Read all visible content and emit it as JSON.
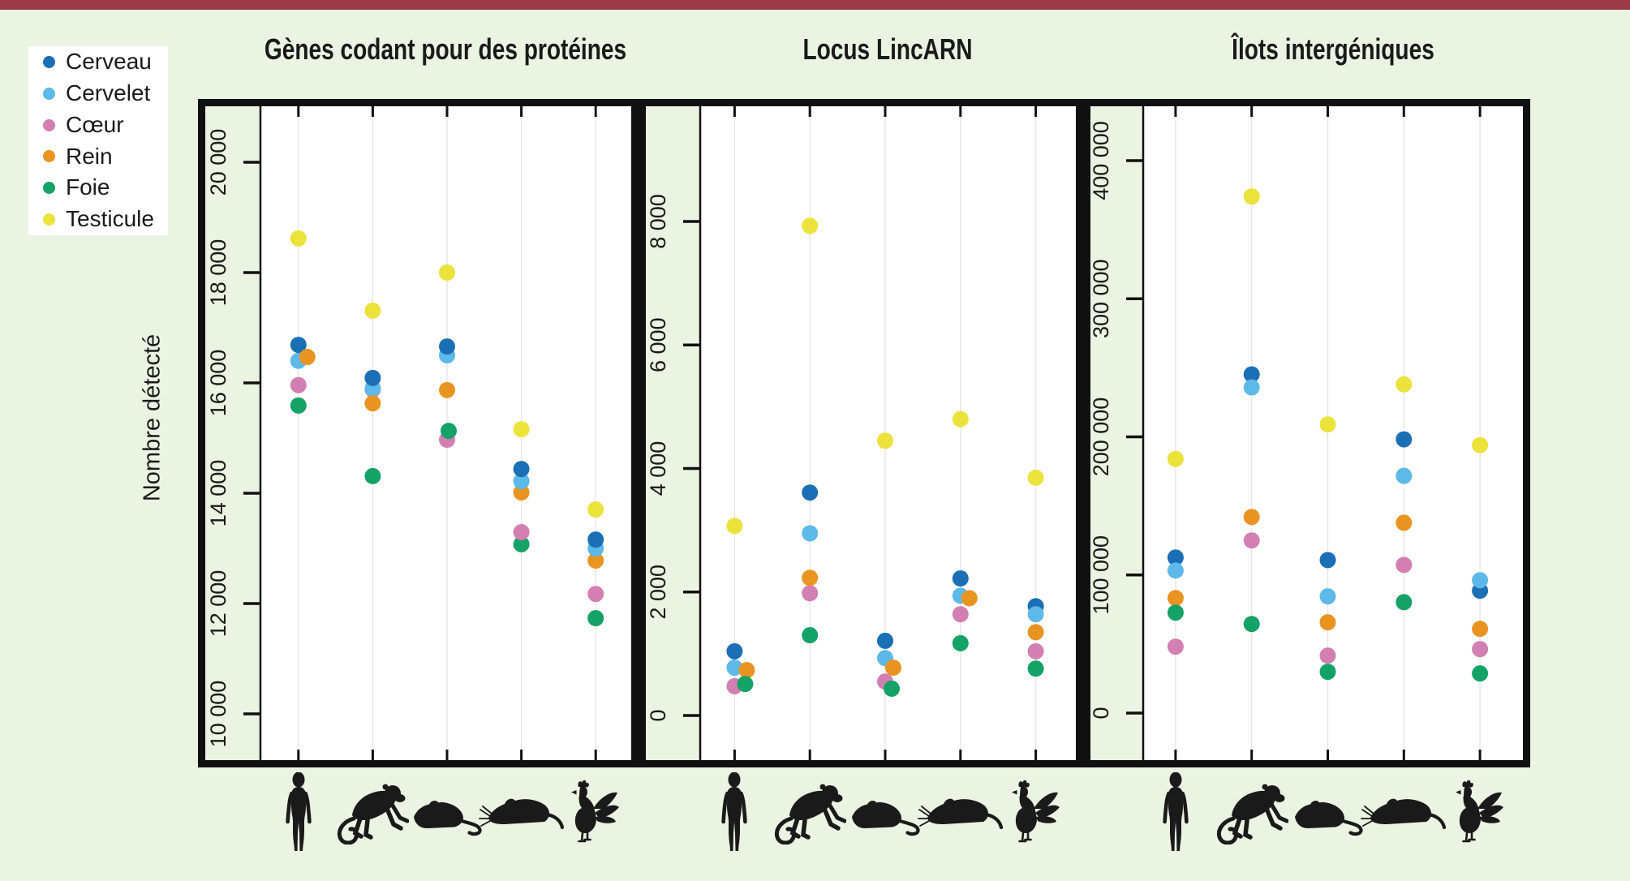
{
  "accent_bar_color": "#9b3a46",
  "background_color": "#ebf3e2",
  "y_axis_label": "Nombre détecté",
  "legend": {
    "items": [
      {
        "label": "Cerveau",
        "color": "#1b6fb5"
      },
      {
        "label": "Cervelet",
        "color": "#5cb9e8"
      },
      {
        "label": "Cœur",
        "color": "#d27fb2"
      },
      {
        "label": "Rein",
        "color": "#e99421"
      },
      {
        "label": "Foie",
        "color": "#14a266"
      },
      {
        "label": "Testicule",
        "color": "#ebe23c"
      }
    ]
  },
  "species_icons": [
    "human",
    "monkey",
    "mouse",
    "rat",
    "rooster"
  ],
  "chart_data": {
    "type": "scatter",
    "panels": [
      {
        "title": "Gènes codant pour des protéines",
        "ylim": [
          10000,
          20000
        ],
        "yticks": [
          {
            "v": 10000,
            "label": "10 000"
          },
          {
            "v": 12000,
            "label": "12 000"
          },
          {
            "v": 14000,
            "label": "14 000"
          },
          {
            "v": 16000,
            "label": "16 000"
          },
          {
            "v": 18000,
            "label": "18 000"
          },
          {
            "v": 20000,
            "label": "20 000"
          }
        ],
        "species_points": [
          {
            "species": "human",
            "points": [
              {
                "organ": "Cervelet",
                "value": 16400
              },
              {
                "organ": "Cœur",
                "value": 15960
              },
              {
                "organ": "Foie",
                "value": 15590
              },
              {
                "organ": "Cerveau",
                "value": 16690
              },
              {
                "organ": "Rein",
                "value": 16470,
                "dx": 11
              },
              {
                "organ": "Testicule",
                "value": 18620
              }
            ]
          },
          {
            "species": "monkey",
            "points": [
              {
                "organ": "Cœur",
                "value": 15880
              },
              {
                "organ": "Cervelet",
                "value": 15900
              },
              {
                "organ": "Cerveau",
                "value": 16090
              },
              {
                "organ": "Rein",
                "value": 15630
              },
              {
                "organ": "Foie",
                "value": 14310
              },
              {
                "organ": "Testicule",
                "value": 17310
              }
            ]
          },
          {
            "species": "mouse",
            "points": [
              {
                "organ": "Cœur",
                "value": 14970
              },
              {
                "organ": "Foie",
                "value": 15130,
                "dx": 2
              },
              {
                "organ": "Rein",
                "value": 15870
              },
              {
                "organ": "Cervelet",
                "value": 16500
              },
              {
                "organ": "Cerveau",
                "value": 16660
              },
              {
                "organ": "Testicule",
                "value": 18000
              }
            ]
          },
          {
            "species": "rat",
            "points": [
              {
                "organ": "Foie",
                "value": 13075
              },
              {
                "organ": "Cœur",
                "value": 13295
              },
              {
                "organ": "Rein",
                "value": 14015
              },
              {
                "organ": "Cervelet",
                "value": 14220
              },
              {
                "organ": "Cerveau",
                "value": 14440
              },
              {
                "organ": "Testicule",
                "value": 15160
              }
            ]
          },
          {
            "species": "rooster",
            "points": [
              {
                "organ": "Foie",
                "value": 11735
              },
              {
                "organ": "Cœur",
                "value": 12175
              },
              {
                "organ": "Rein",
                "value": 12780
              },
              {
                "organ": "Cervelet",
                "value": 13000
              },
              {
                "organ": "Cerveau",
                "value": 13160
              },
              {
                "organ": "Testicule",
                "value": 13705
              }
            ]
          }
        ]
      },
      {
        "title": "Locus LincARN",
        "ylim": [
          0,
          8000
        ],
        "yticks": [
          {
            "v": 0,
            "label": "0"
          },
          {
            "v": 2000,
            "label": "2 000"
          },
          {
            "v": 4000,
            "label": "4 000"
          },
          {
            "v": 6000,
            "label": "6 000"
          },
          {
            "v": 8000,
            "label": "8 000"
          }
        ],
        "species_points": [
          {
            "species": "human",
            "points": [
              {
                "organ": "Cerveau",
                "value": 1040
              },
              {
                "organ": "Cervelet",
                "value": 775
              },
              {
                "organ": "Cœur",
                "value": 475
              },
              {
                "organ": "Rein",
                "value": 735,
                "dx": 15
              },
              {
                "organ": "Foie",
                "value": 510,
                "dx": 13
              },
              {
                "organ": "Testicule",
                "value": 3070
              }
            ]
          },
          {
            "species": "monkey",
            "points": [
              {
                "organ": "Cervelet",
                "value": 2950
              },
              {
                "organ": "Cœur",
                "value": 1980
              },
              {
                "organ": "Rein",
                "value": 2230
              },
              {
                "organ": "Cerveau",
                "value": 3610
              },
              {
                "organ": "Foie",
                "value": 1300
              },
              {
                "organ": "Testicule",
                "value": 7930
              }
            ]
          },
          {
            "species": "mouse",
            "points": [
              {
                "organ": "Cerveau",
                "value": 1210
              },
              {
                "organ": "Cervelet",
                "value": 930
              },
              {
                "organ": "Rein",
                "value": 775,
                "dx": 10
              },
              {
                "organ": "Cœur",
                "value": 550
              },
              {
                "organ": "Foie",
                "value": 435,
                "dx": 8
              },
              {
                "organ": "Testicule",
                "value": 4450
              }
            ]
          },
          {
            "species": "rat",
            "points": [
              {
                "organ": "Cœur",
                "value": 1640
              },
              {
                "organ": "Cervelet",
                "value": 1940
              },
              {
                "organ": "Rein",
                "value": 1900,
                "dx": 11
              },
              {
                "organ": "Cerveau",
                "value": 2220
              },
              {
                "organ": "Foie",
                "value": 1170
              },
              {
                "organ": "Testicule",
                "value": 4800
              }
            ]
          },
          {
            "species": "rooster",
            "points": [
              {
                "organ": "Cerveau",
                "value": 1770
              },
              {
                "organ": "Cervelet",
                "value": 1640
              },
              {
                "organ": "Rein",
                "value": 1350
              },
              {
                "organ": "Cœur",
                "value": 1040
              },
              {
                "organ": "Foie",
                "value": 760
              },
              {
                "organ": "Testicule",
                "value": 3850
              }
            ]
          }
        ]
      },
      {
        "title": "Îlots intergéniques",
        "ylim": [
          0,
          400000
        ],
        "yticks": [
          {
            "v": 0,
            "label": "0"
          },
          {
            "v": 100000,
            "label": "100 000"
          },
          {
            "v": 200000,
            "label": "200 000"
          },
          {
            "v": 300000,
            "label": "300 000"
          },
          {
            "v": 400000,
            "label": "400 000"
          }
        ],
        "species_points": [
          {
            "species": "human",
            "points": [
              {
                "organ": "Cerveau",
                "value": 112600
              },
              {
                "organ": "Cervelet",
                "value": 103200
              },
              {
                "organ": "Rein",
                "value": 83300
              },
              {
                "organ": "Foie",
                "value": 72700
              },
              {
                "organ": "Cœur",
                "value": 48100
              },
              {
                "organ": "Testicule",
                "value": 184000
              }
            ]
          },
          {
            "species": "monkey",
            "points": [
              {
                "organ": "Cerveau",
                "value": 245200
              },
              {
                "organ": "Cervelet",
                "value": 235800
              },
              {
                "organ": "Rein",
                "value": 142000
              },
              {
                "organ": "Cœur",
                "value": 125000
              },
              {
                "organ": "Foie",
                "value": 64500
              },
              {
                "organ": "Testicule",
                "value": 374000
              }
            ]
          },
          {
            "species": "mouse",
            "points": [
              {
                "organ": "Cerveau",
                "value": 110800
              },
              {
                "organ": "Cervelet",
                "value": 84500
              },
              {
                "organ": "Rein",
                "value": 65700
              },
              {
                "organ": "Cœur",
                "value": 41600
              },
              {
                "organ": "Foie",
                "value": 29900
              },
              {
                "organ": "Testicule",
                "value": 209000
              }
            ]
          },
          {
            "species": "rat",
            "points": [
              {
                "organ": "Cerveau",
                "value": 198200
              },
              {
                "organ": "Cervelet",
                "value": 171800
              },
              {
                "organ": "Rein",
                "value": 137800
              },
              {
                "organ": "Cœur",
                "value": 107300
              },
              {
                "organ": "Foie",
                "value": 80300
              },
              {
                "organ": "Testicule",
                "value": 238000
              }
            ]
          },
          {
            "species": "rooster",
            "points": [
              {
                "organ": "Cerveau",
                "value": 88600
              },
              {
                "organ": "Cervelet",
                "value": 96200
              },
              {
                "organ": "Rein",
                "value": 61000
              },
              {
                "organ": "Cœur",
                "value": 46300
              },
              {
                "organ": "Foie",
                "value": 28700
              },
              {
                "organ": "Testicule",
                "value": 194000
              }
            ]
          }
        ]
      }
    ]
  }
}
